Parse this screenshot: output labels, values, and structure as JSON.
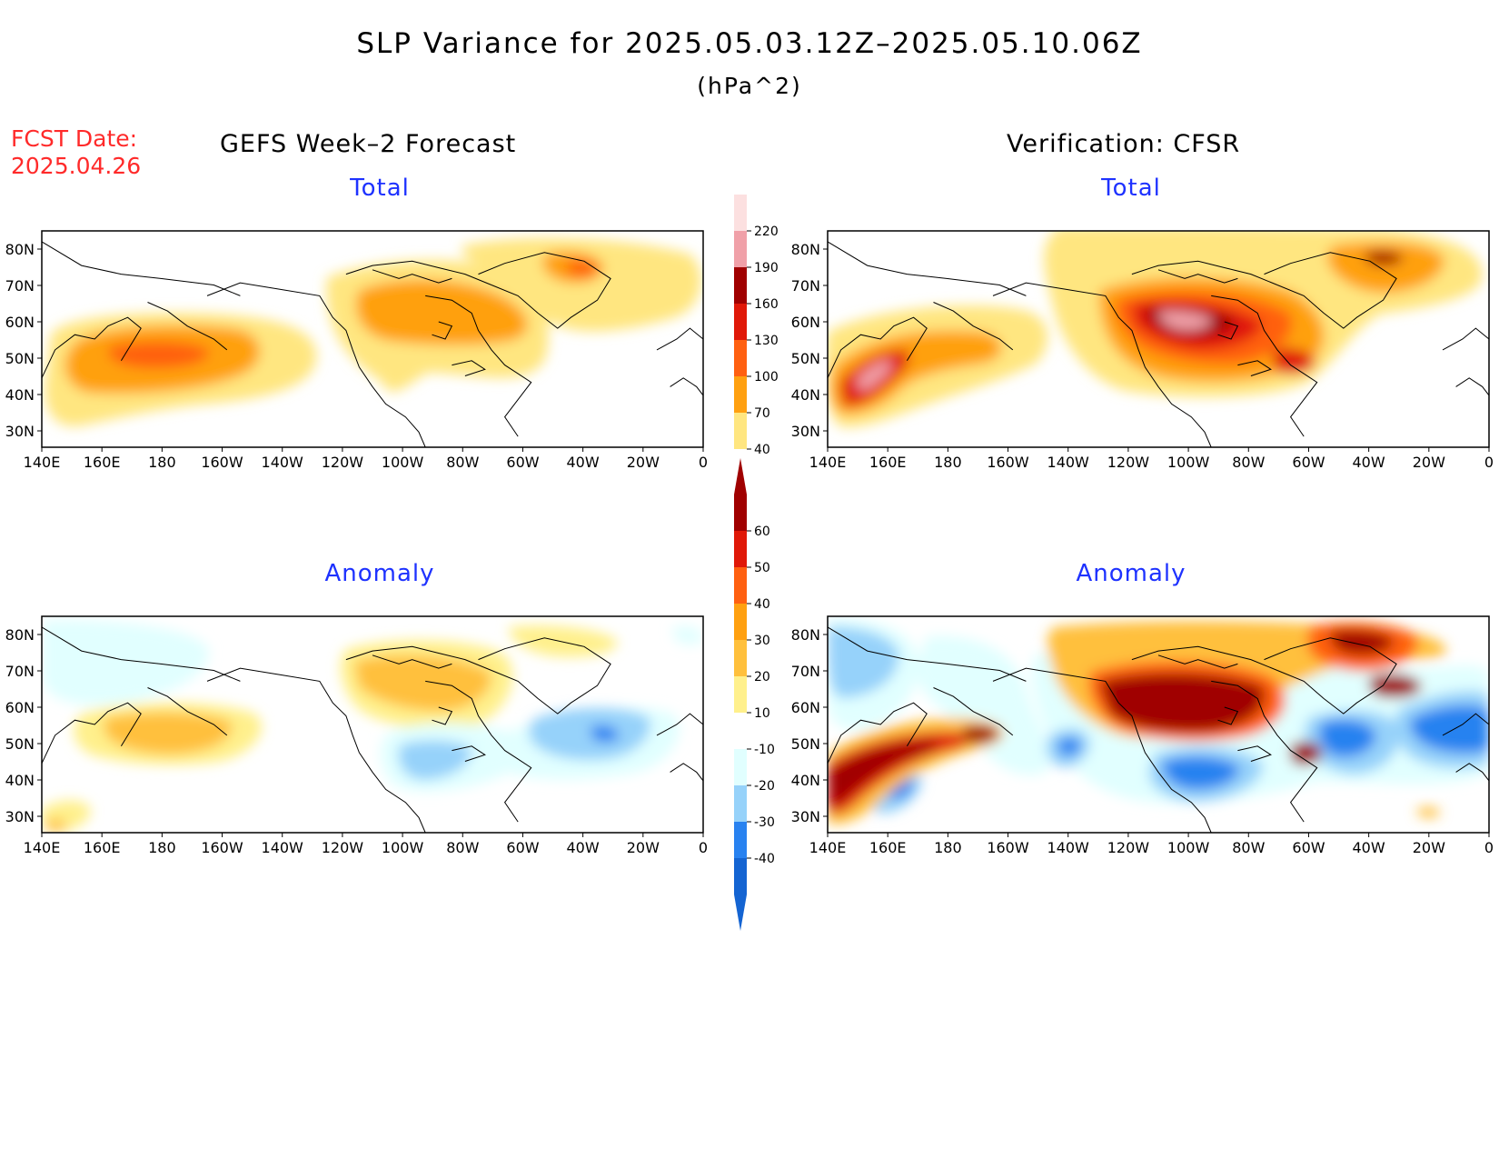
{
  "header": {
    "title": "SLP Variance for 2025.05.03.12Z–2025.05.10.06Z",
    "units": "(hPa^2)",
    "fcst_label": "FCST Date:",
    "fcst_date": "2025.04.26",
    "left_column": "GEFS Week–2 Forecast",
    "right_column": "Verification: CFSR"
  },
  "panels": {
    "forecast_total": {
      "title": "Total"
    },
    "verification_total": {
      "title": "Total"
    },
    "forecast_anomaly": {
      "title": "Anomaly"
    },
    "verification_anomaly": {
      "title": "Anomaly"
    }
  },
  "axes": {
    "lon_labels": [
      "140E",
      "160E",
      "180",
      "160W",
      "140W",
      "120W",
      "100W",
      "80W",
      "60W",
      "40W",
      "20W",
      "0"
    ],
    "lat_labels": [
      "80N",
      "70N",
      "60N",
      "50N",
      "40N",
      "30N"
    ],
    "lon_range": [
      "140E",
      "0"
    ],
    "lat_range": [
      25,
      85
    ]
  },
  "colorbars": {
    "total": {
      "labels": [
        "40",
        "70",
        "100",
        "130",
        "160",
        "190",
        "220"
      ],
      "colors": [
        "#ffe680",
        "#ffa010",
        "#ff6010",
        "#e01808",
        "#a00000",
        "#f0a0a8",
        "#fce0e0"
      ]
    },
    "anomaly": {
      "labels": [
        "-40",
        "-30",
        "-20",
        "-10",
        "10",
        "20",
        "30",
        "40",
        "50",
        "60"
      ],
      "colors": [
        "#1464d2",
        "#2882f0",
        "#96d2fa",
        "#e1ffff",
        "#ffffff",
        "#fff08c",
        "#ffc03c",
        "#ffa010",
        "#ff6010",
        "#e01808",
        "#a00000"
      ]
    }
  }
}
